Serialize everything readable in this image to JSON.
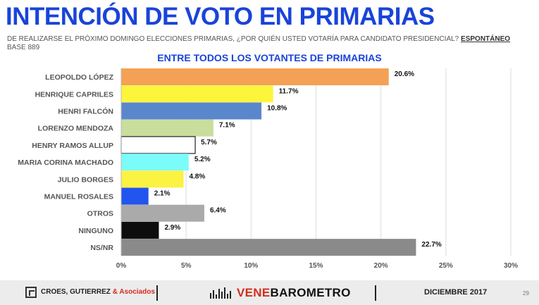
{
  "header": {
    "title": "INTENCIÓN DE VOTO EN PRIMARIAS",
    "question": "DE REALIZARSE EL PRÓXIMO DOMINGO ELECCIONES PRIMARIAS, ¿POR QUIÉN USTED VOTARÍA PARA CANDIDATO PRESIDENCIAL?",
    "question_tag": "ESPONTÁNEO",
    "base": "BASE 889",
    "subtitle": "ENTRE TODOS LOS VOTANTES  DE PRIMARIAS"
  },
  "chart_data": {
    "type": "bar",
    "orientation": "horizontal",
    "categories": [
      "LEOPOLDO LÓPEZ",
      "HENRIQUE CAPRILES",
      "HENRI FALCÓN",
      "LORENZO MENDOZA",
      "HENRY RAMOS ALLUP",
      "MARIA CORINA MACHADO",
      "JULIO BORGES",
      "MANUEL ROSALES",
      "OTROS",
      "NINGUNO",
      "NS/NR"
    ],
    "values": [
      20.6,
      11.7,
      10.8,
      7.1,
      5.7,
      5.2,
      4.8,
      2.1,
      6.4,
      2.9,
      22.7
    ],
    "value_labels": [
      "20.6%",
      "11.7%",
      "10.8%",
      "7.1%",
      "5.7%",
      "5.2%",
      "4.8%",
      "2.1%",
      "6.4%",
      "2.9%",
      "22.7%"
    ],
    "colors": [
      "#f4a155",
      "#fbf53c",
      "#5a87cc",
      "#c9dd9c",
      "#ffffff",
      "#7cfbfb",
      "#fbf242",
      "#2255ee",
      "#aaaaaa",
      "#0d0d0d",
      "#8a8a8a"
    ],
    "xlim": [
      0,
      30
    ],
    "xticks": [
      0,
      5,
      10,
      15,
      20,
      25,
      30
    ],
    "xtick_labels": [
      "0%",
      "5%",
      "10%",
      "15%",
      "20%",
      "25%",
      "30%"
    ],
    "grid": true
  },
  "footer": {
    "company": "CROES, GUTIERREZ",
    "company_amp": "& Asociados",
    "brand_a": "VENE",
    "brand_b": "BAROMETRO",
    "date": "DICIEMBRE  2017",
    "page": "29"
  }
}
